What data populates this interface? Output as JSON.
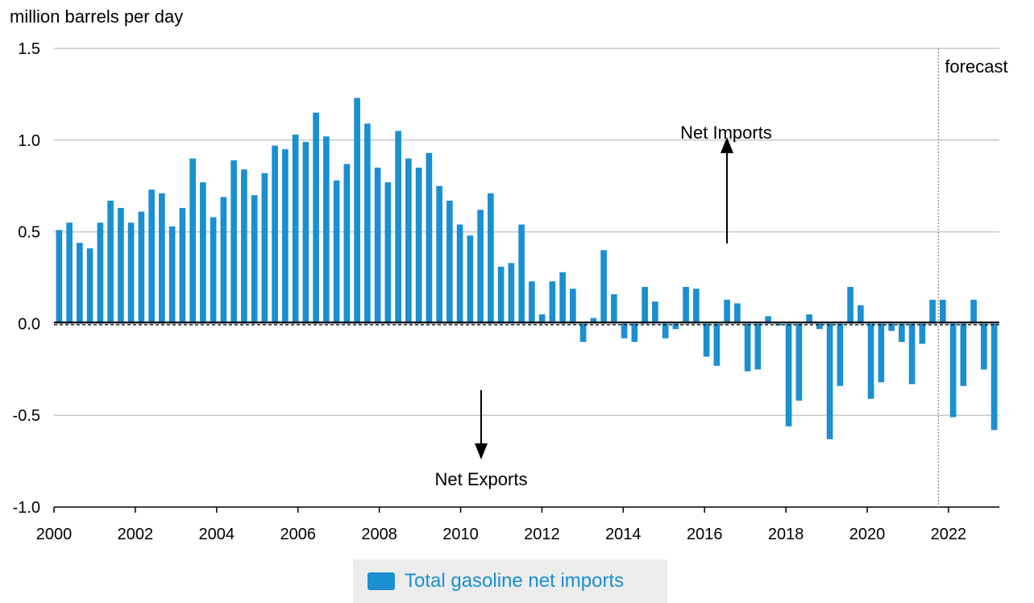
{
  "chart_data": {
    "type": "bar",
    "ylabel": "million barrels per day",
    "ylim": [
      -1.0,
      1.5
    ],
    "yticks": [
      1.5,
      1.0,
      0.5,
      0.0,
      -0.5,
      -1.0
    ],
    "ytick_labels": [
      "1.5",
      "1.0",
      "0.5",
      "0.0",
      "-0.5",
      "-1.0"
    ],
    "xlim": [
      2000,
      2023.25
    ],
    "xticks": [
      2000,
      2002,
      2004,
      2006,
      2008,
      2010,
      2012,
      2014,
      2016,
      2018,
      2020,
      2022
    ],
    "xtick_labels": [
      "2000",
      "2002",
      "2004",
      "2006",
      "2008",
      "2010",
      "2012",
      "2014",
      "2016",
      "2018",
      "2020",
      "2022"
    ],
    "grid": true,
    "forecast_label": "forecast",
    "forecast_start": 2021.75,
    "annotations": {
      "up": "Net Imports",
      "down": "Net Exports"
    },
    "series": [
      {
        "name": "Total gasoline net imports",
        "color": "#1a8fd2",
        "values": [
          0.51,
          0.55,
          0.44,
          0.41,
          0.55,
          0.67,
          0.63,
          0.55,
          0.61,
          0.73,
          0.71,
          0.53,
          0.63,
          0.9,
          0.77,
          0.58,
          0.69,
          0.89,
          0.84,
          0.7,
          0.82,
          0.97,
          0.95,
          1.03,
          0.99,
          1.15,
          1.02,
          0.78,
          0.87,
          1.23,
          1.09,
          0.85,
          0.77,
          1.05,
          0.9,
          0.85,
          0.93,
          0.75,
          0.67,
          0.54,
          0.48,
          0.62,
          0.71,
          0.31,
          0.33,
          0.54,
          0.23,
          0.05,
          0.23,
          0.28,
          0.19,
          -0.1,
          0.03,
          0.4,
          0.16,
          -0.08,
          -0.1,
          0.2,
          0.12,
          -0.08,
          -0.03,
          0.2,
          0.19,
          -0.18,
          -0.23,
          0.13,
          0.11,
          -0.26,
          -0.25,
          0.04,
          -0.01,
          -0.56,
          -0.42,
          0.05,
          -0.03,
          -0.63,
          -0.34,
          0.2,
          0.1,
          -0.41,
          -0.32,
          -0.04,
          -0.1,
          -0.33,
          -0.11,
          0.13,
          0.13,
          -0.51,
          -0.34,
          0.13,
          -0.25,
          -0.58
        ]
      }
    ]
  },
  "legend": {
    "label": "Total gasoline net imports"
  }
}
